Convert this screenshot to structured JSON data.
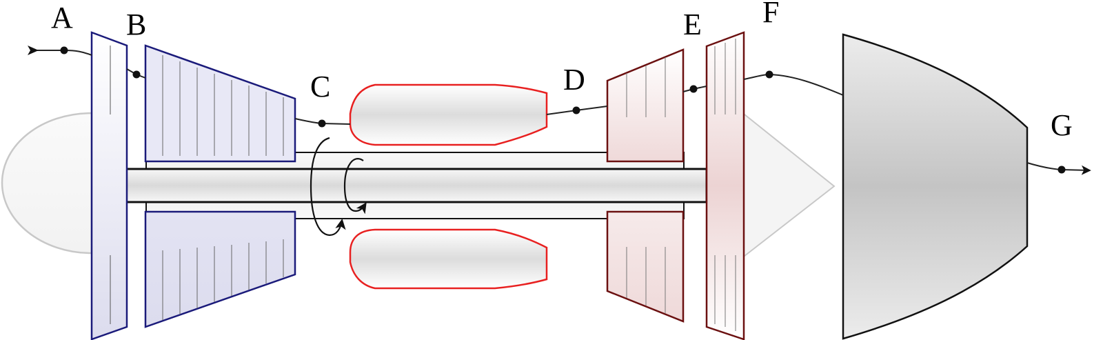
{
  "diagram": {
    "stations": [
      {
        "id": "A",
        "label": "A"
      },
      {
        "id": "B",
        "label": "B"
      },
      {
        "id": "C",
        "label": "C"
      },
      {
        "id": "D",
        "label": "D"
      },
      {
        "id": "E",
        "label": "E"
      },
      {
        "id": "F",
        "label": "F"
      },
      {
        "id": "G",
        "label": "G"
      }
    ],
    "colors": {
      "compressor_stroke": "#1a1a7a",
      "compressor_fill": "#e3e3f3",
      "turbine_stroke": "#6b1010",
      "turbine_fill": "#f0dcdc",
      "combustor_stroke": "#e82020",
      "shaft_stroke": "#111111",
      "flow_line": "#222222",
      "nozzle_fill": "#c8c8c8",
      "nose_stroke": "#c8c8c8"
    }
  }
}
